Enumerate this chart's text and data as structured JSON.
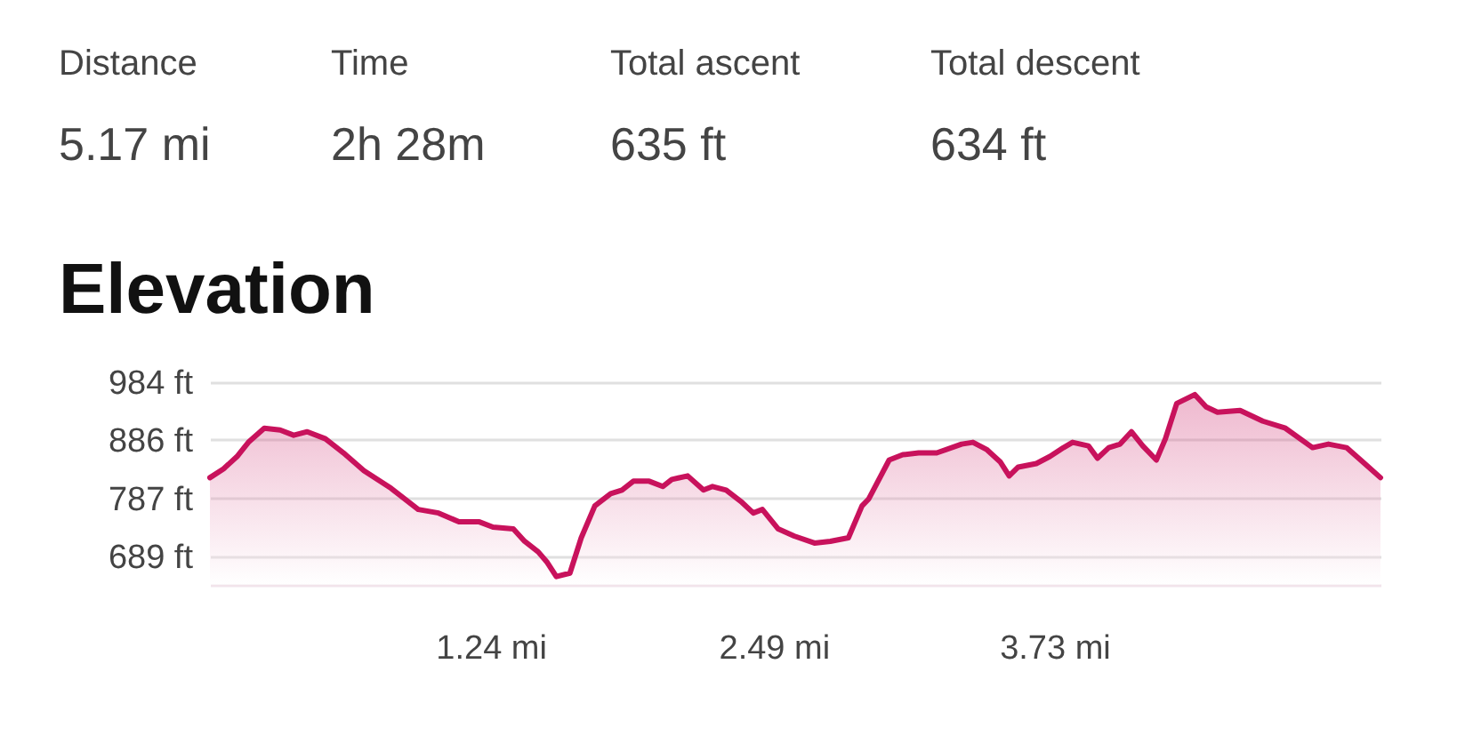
{
  "chart_data": {
    "type": "area",
    "title": "Elevation",
    "annotations": [
      "Distance",
      "5.17 mi",
      "Time",
      "2h 28m",
      "Total ascent",
      "635 ft",
      "Total descent",
      "634 ft"
    ],
    "x": [
      0.0,
      0.06,
      0.12,
      0.17,
      0.24,
      0.31,
      0.37,
      0.43,
      0.51,
      0.59,
      0.68,
      0.8,
      0.92,
      1.01,
      1.1,
      1.19,
      1.25,
      1.34,
      1.39,
      1.45,
      1.49,
      1.53,
      1.59,
      1.64,
      1.7,
      1.77,
      1.82,
      1.87,
      1.94,
      2.0,
      2.04,
      2.11,
      2.18,
      2.22,
      2.28,
      2.35,
      2.4,
      2.44,
      2.51,
      2.58,
      2.67,
      2.74,
      2.82,
      2.88,
      2.91,
      3.0,
      3.06,
      3.13,
      3.21,
      3.32,
      3.37,
      3.43,
      3.49,
      3.53,
      3.57,
      3.65,
      3.71,
      3.77,
      3.81,
      3.88,
      3.92,
      3.97,
      4.02,
      4.07,
      4.12,
      4.18,
      4.22,
      4.27,
      4.35,
      4.4,
      4.45,
      4.55,
      4.65,
      4.75,
      4.87,
      4.94,
      5.02,
      5.1,
      5.17
    ],
    "series": [
      {
        "color": "#c8125c",
        "values": [
          822,
          837,
          858,
          882,
          906,
          903,
          894,
          900,
          888,
          864,
          834,
          804,
          768,
          762,
          747,
          747,
          738,
          735,
          714,
          696,
          678,
          654,
          660,
          720,
          774,
          795,
          801,
          816,
          816,
          807,
          819,
          825,
          801,
          807,
          801,
          780,
          762,
          768,
          735,
          723,
          711,
          714,
          720,
          774,
          786,
          852,
          861,
          864,
          864,
          879,
          882,
          870,
          849,
          825,
          840,
          846,
          858,
          873,
          882,
          876,
          855,
          873,
          879,
          900,
          876,
          852,
          888,
          948,
          963,
          942,
          933,
          936,
          918,
          906,
          873,
          879,
          873,
          846,
          822
        ]
      }
    ],
    "xlim": [
      0,
      5.17
    ],
    "ylim": [
      640,
      984
    ],
    "xticks": [
      {
        "value": 1.24,
        "label": "1.24 mi"
      },
      {
        "value": 2.49,
        "label": "2.49 mi"
      },
      {
        "value": 3.73,
        "label": "3.73 mi"
      }
    ],
    "yticks": [
      {
        "value": 689,
        "label": "689 ft"
      },
      {
        "value": 787,
        "label": "787 ft"
      },
      {
        "value": 886,
        "label": "886 ft"
      },
      {
        "value": 984,
        "label": "984 ft"
      }
    ],
    "grid": "y"
  }
}
